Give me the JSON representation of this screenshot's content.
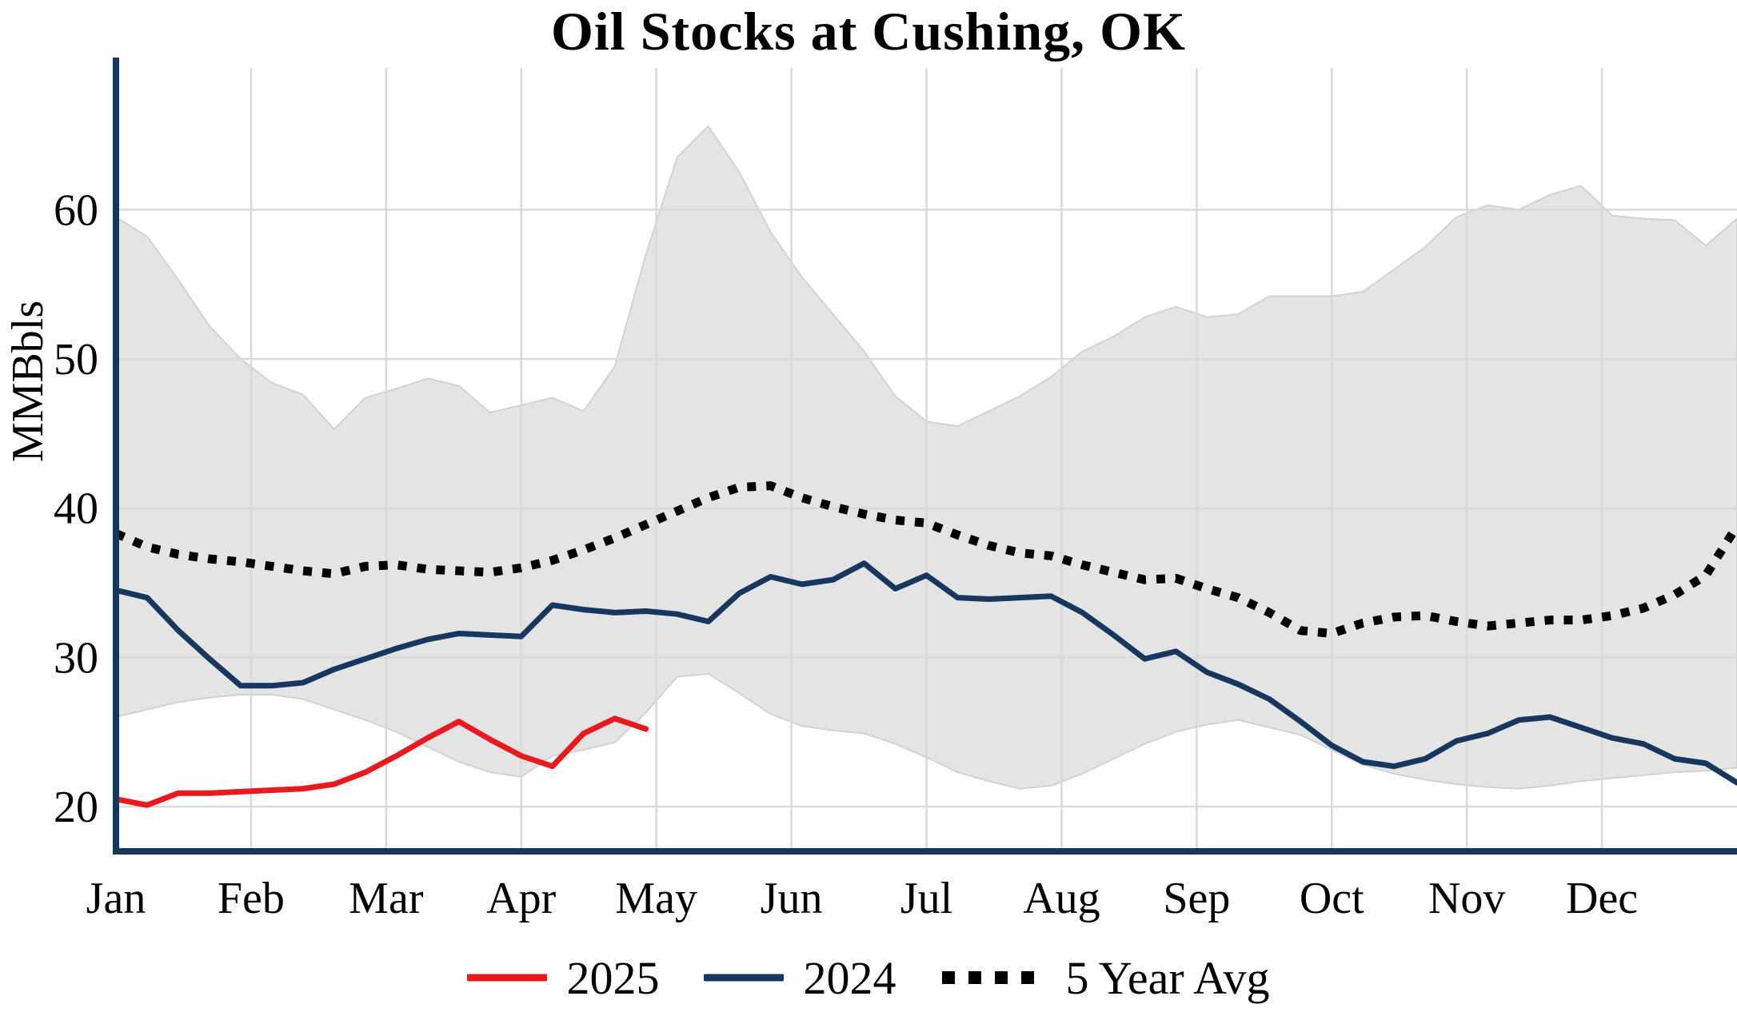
{
  "chart_data": {
    "type": "line",
    "title": "Oil Stocks at Cushing, OK",
    "ylabel": "MMBbls",
    "x_unit": "weeks",
    "xlim": [
      0,
      52
    ],
    "ylim": [
      17,
      69.5
    ],
    "y_ticks": [
      20,
      30,
      40,
      50,
      60
    ],
    "month_labels": [
      "Jan",
      "Feb",
      "Mar",
      "Apr",
      "May",
      "Jun",
      "Jul",
      "Aug",
      "Sep",
      "Oct",
      "Nov",
      "Dec"
    ],
    "grid": true,
    "colors": {
      "axis": "#17365d",
      "gridline": "#d9d9d9",
      "band_fill": "#e4e4e4",
      "band_edge": "#d2d2d2",
      "red_2025": "#e8191f",
      "navy_2024": "#17375e",
      "avg_black": "#000000"
    },
    "band": {
      "name": "5-year-range",
      "start_week": 0,
      "upper": [
        59.5,
        58.2,
        55.3,
        52.2,
        50.0,
        48.4,
        47.6,
        45.3,
        47.4,
        48.0,
        48.7,
        48.2,
        46.4,
        46.9,
        47.4,
        46.5,
        49.5,
        57.0,
        63.5,
        65.6,
        62.5,
        58.5,
        55.5,
        53.0,
        50.5,
        47.5,
        45.8,
        45.5,
        46.5,
        47.5,
        48.8,
        50.5,
        51.5,
        52.8,
        53.5,
        52.8,
        53.0,
        54.2,
        54.2,
        54.2,
        54.5,
        56.0,
        57.5,
        59.5,
        60.3,
        60.0,
        61.0,
        61.6,
        59.6,
        59.4,
        59.3,
        57.6,
        59.4
      ],
      "lower": [
        26.0,
        26.5,
        27.0,
        27.3,
        27.5,
        27.5,
        27.2,
        26.5,
        25.8,
        25.0,
        24.0,
        23.0,
        22.3,
        22.0,
        23.4,
        23.8,
        24.3,
        26.3,
        28.7,
        28.9,
        27.6,
        26.2,
        25.4,
        25.1,
        24.9,
        24.2,
        23.3,
        22.3,
        21.7,
        21.2,
        21.4,
        22.2,
        23.2,
        24.2,
        25.0,
        25.5,
        25.8,
        25.3,
        24.8,
        23.8,
        22.8,
        22.2,
        21.8,
        21.5,
        21.3,
        21.2,
        21.4,
        21.7,
        21.9,
        22.1,
        22.3,
        22.4,
        22.6
      ]
    },
    "series": [
      {
        "name": "2025",
        "color_key": "red_2025",
        "style": "solid",
        "start_week": 0,
        "values": [
          20.5,
          20.1,
          20.9,
          20.9,
          21.0,
          21.1,
          21.2,
          21.5,
          22.3,
          23.4,
          24.6,
          25.7,
          24.5,
          23.4,
          22.7,
          24.9,
          25.9,
          25.2
        ]
      },
      {
        "name": "2024",
        "color_key": "navy_2024",
        "style": "solid",
        "start_week": 0,
        "values": [
          34.5,
          34.0,
          31.8,
          29.9,
          28.1,
          28.1,
          28.3,
          29.2,
          29.9,
          30.6,
          31.2,
          31.6,
          31.5,
          31.4,
          33.5,
          33.2,
          33.0,
          33.1,
          32.9,
          32.4,
          34.3,
          35.4,
          34.9,
          35.2,
          36.3,
          34.6,
          35.5,
          34.0,
          33.9,
          34.0,
          34.1,
          33.0,
          31.5,
          29.9,
          30.4,
          29.0,
          28.2,
          27.2,
          25.7,
          24.1,
          23.0,
          22.7,
          23.2,
          24.4,
          24.9,
          25.8,
          26.0,
          25.3,
          24.6,
          24.2,
          23.2,
          22.9,
          21.6
        ]
      },
      {
        "name": "5 Year Avg",
        "color_key": "avg_black",
        "style": "dotted",
        "start_week": 0,
        "values": [
          38.3,
          37.4,
          36.9,
          36.6,
          36.4,
          36.1,
          35.8,
          35.6,
          36.1,
          36.2,
          35.9,
          35.8,
          35.7,
          36.0,
          36.5,
          37.2,
          38.0,
          38.9,
          39.8,
          40.7,
          41.4,
          41.5,
          40.7,
          40.1,
          39.6,
          39.2,
          39.0,
          38.2,
          37.5,
          37.0,
          36.8,
          36.2,
          35.7,
          35.2,
          35.3,
          34.6,
          34.0,
          33.0,
          31.8,
          31.6,
          32.3,
          32.7,
          32.8,
          32.4,
          32.1,
          32.3,
          32.5,
          32.5,
          32.8,
          33.3,
          34.2,
          35.5,
          38.8
        ]
      }
    ],
    "legend": [
      {
        "label": "2025",
        "color": "#e8191f",
        "style": "solid"
      },
      {
        "label": "2024",
        "color": "#17375e",
        "style": "solid"
      },
      {
        "label": "5 Year Avg",
        "color": "#000000",
        "style": "dotted"
      }
    ],
    "legend_position": "bottom"
  }
}
